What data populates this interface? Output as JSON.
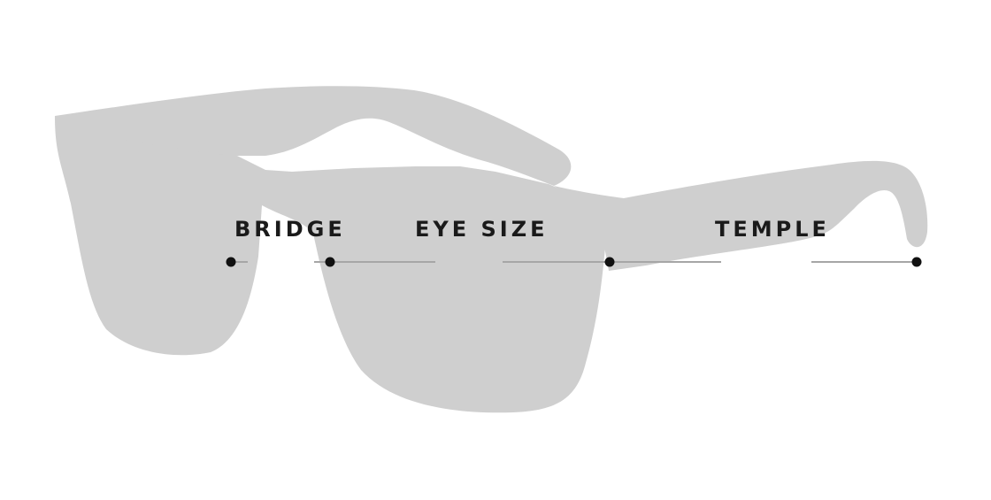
{
  "diagram": {
    "labels": {
      "bridge": "BRIDGE",
      "eye_size": "EYE SIZE",
      "temple": "TEMPLE"
    },
    "colors": {
      "silhouette": "#cfcfcf",
      "line": "#a6a6a6",
      "dot": "#111111",
      "text": "#1a1a1a"
    },
    "icons": {
      "silhouette": "sunglasses-side-silhouette",
      "endpoint": "dot-marker"
    }
  }
}
